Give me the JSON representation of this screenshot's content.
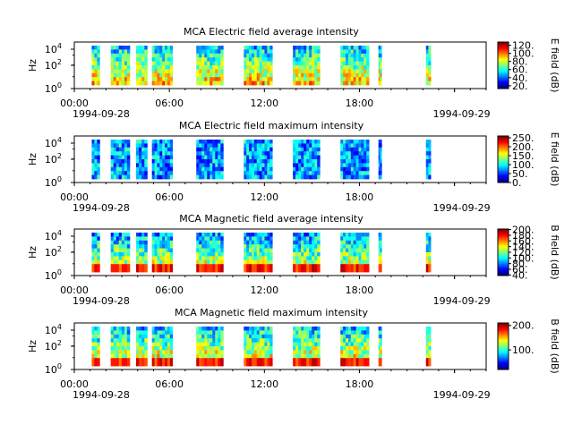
{
  "chart_data": [
    {
      "type": "heatmap",
      "title": "MCA  Electric field average intensity",
      "ylabel": "Hz",
      "yticks": [
        "10^0",
        "10^2",
        "10^4"
      ],
      "xticks": [
        "00:00",
        "06:00",
        "12:00",
        "18:00"
      ],
      "date_start": "1994-09-28",
      "date_end": "1994-09-29",
      "colorbar": {
        "label": "E field (dB)",
        "range": [
          13,
          128
        ],
        "ticks": [
          "20.",
          "40.",
          "60.",
          "80.",
          "100.",
          "120."
        ]
      },
      "data_blocks_hours": [
        [
          1.1,
          1.6
        ],
        [
          2.3,
          3.5
        ],
        [
          3.9,
          4.6
        ],
        [
          4.9,
          6.2
        ],
        [
          7.7,
          9.4
        ],
        [
          10.7,
          12.5
        ],
        [
          13.8,
          15.5
        ],
        [
          16.8,
          18.6
        ],
        [
          19.2,
          19.4
        ],
        [
          22.2,
          22.5
        ]
      ],
      "level": 0.5
    },
    {
      "type": "heatmap",
      "title": "MCA  Electric field maximum intensity",
      "ylabel": "Hz",
      "yticks": [
        "10^0",
        "10^2",
        "10^4"
      ],
      "xticks": [
        "00:00",
        "06:00",
        "12:00",
        "18:00"
      ],
      "date_start": "1994-09-28",
      "date_end": "1994-09-29",
      "colorbar": {
        "label": "E field (dB)",
        "range": [
          0,
          260
        ],
        "ticks": [
          "0.",
          "50.",
          "100.",
          "150.",
          "200.",
          "250."
        ]
      },
      "data_blocks_hours": [
        [
          1.1,
          1.6
        ],
        [
          2.3,
          3.5
        ],
        [
          3.9,
          4.6
        ],
        [
          4.9,
          6.2
        ],
        [
          7.7,
          9.4
        ],
        [
          10.7,
          12.5
        ],
        [
          13.8,
          15.5
        ],
        [
          16.8,
          18.6
        ],
        [
          19.2,
          19.4
        ],
        [
          22.2,
          22.5
        ]
      ],
      "level": 0.3
    },
    {
      "type": "heatmap",
      "title": "MCA  Magnetic field average intensity",
      "ylabel": "Hz",
      "yticks": [
        "10^0",
        "10^2",
        "10^4"
      ],
      "xticks": [
        "00:00",
        "06:00",
        "12:00",
        "18:00"
      ],
      "date_start": "1994-09-28",
      "date_end": "1994-09-29",
      "colorbar": {
        "label": "B field (dB)",
        "range": [
          38,
          202
        ],
        "ticks": [
          "40.",
          "60.",
          "80.",
          "100.",
          "120.",
          "140.",
          "160.",
          "180.",
          "200."
        ]
      },
      "data_blocks_hours": [
        [
          1.1,
          1.6
        ],
        [
          2.3,
          3.5
        ],
        [
          3.9,
          4.6
        ],
        [
          4.9,
          6.2
        ],
        [
          7.7,
          9.4
        ],
        [
          10.7,
          12.5
        ],
        [
          13.8,
          15.5
        ],
        [
          16.8,
          18.6
        ],
        [
          19.2,
          19.4
        ],
        [
          22.2,
          22.5
        ]
      ],
      "level": 0.45
    },
    {
      "type": "heatmap",
      "title": "MCA  Magnetic field maximum intensity",
      "ylabel": "Hz",
      "yticks": [
        "10^0",
        "10^2",
        "10^4"
      ],
      "xticks": [
        "00:00",
        "06:00",
        "12:00",
        "18:00"
      ],
      "date_start": "1994-09-28",
      "date_end": "1994-09-29",
      "colorbar": {
        "label": "B field (dB)",
        "range": [
          20,
          210
        ],
        "ticks": [
          "100.",
          "200."
        ]
      },
      "data_blocks_hours": [
        [
          1.1,
          1.6
        ],
        [
          2.3,
          3.5
        ],
        [
          3.9,
          4.6
        ],
        [
          4.9,
          6.2
        ],
        [
          7.7,
          9.4
        ],
        [
          10.7,
          12.5
        ],
        [
          13.8,
          15.5
        ],
        [
          16.8,
          18.6
        ],
        [
          19.2,
          19.4
        ],
        [
          22.2,
          22.5
        ]
      ],
      "level": 0.5
    }
  ]
}
